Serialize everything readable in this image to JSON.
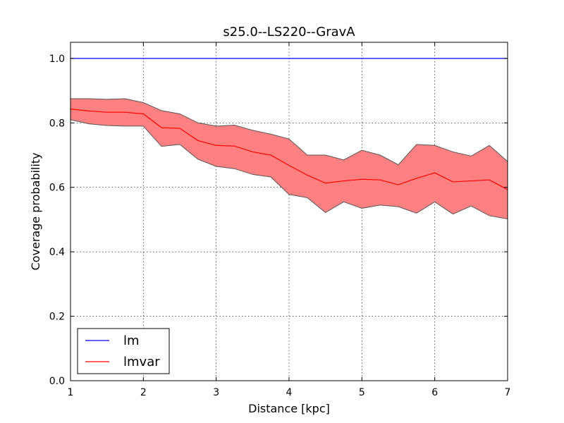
{
  "chart_data": {
    "type": "line",
    "title": "s25.0--LS220--GravA",
    "xlabel": "Distance [kpc]",
    "ylabel": "Coverage probability",
    "xlim": [
      1,
      7
    ],
    "ylim": [
      0.0,
      1.05
    ],
    "grid": true,
    "legend_position": "lower-left",
    "x_ticks": [
      "1",
      "2",
      "3",
      "4",
      "5",
      "6",
      "7"
    ],
    "y_ticks": [
      "0.0",
      "0.2",
      "0.4",
      "0.6",
      "0.8",
      "1.0"
    ],
    "x": [
      1.0,
      1.25,
      1.5,
      1.75,
      2.0,
      2.25,
      2.5,
      2.75,
      3.0,
      3.25,
      3.5,
      3.75,
      4.0,
      4.25,
      4.5,
      4.75,
      5.0,
      5.25,
      5.5,
      5.75,
      6.0,
      6.25,
      6.5,
      6.75,
      7.0
    ],
    "series": [
      {
        "name": "lm",
        "color": "#0000ff",
        "values": [
          1.0,
          1.0,
          1.0,
          1.0,
          1.0,
          1.0,
          1.0,
          1.0,
          1.0,
          1.0,
          1.0,
          1.0,
          1.0,
          1.0,
          1.0,
          1.0,
          1.0,
          1.0,
          1.0,
          1.0,
          1.0,
          1.0,
          1.0,
          1.0,
          1.0
        ]
      },
      {
        "name": "lmvar",
        "color": "#ff0000",
        "values": [
          0.843,
          0.837,
          0.833,
          0.833,
          0.828,
          0.785,
          0.783,
          0.745,
          0.73,
          0.728,
          0.71,
          0.7,
          0.668,
          0.638,
          0.613,
          0.62,
          0.625,
          0.623,
          0.608,
          0.628,
          0.645,
          0.617,
          0.62,
          0.623,
          0.593
        ],
        "band_upper": [
          0.875,
          0.875,
          0.873,
          0.875,
          0.863,
          0.838,
          0.828,
          0.8,
          0.79,
          0.793,
          0.777,
          0.765,
          0.75,
          0.7,
          0.7,
          0.685,
          0.715,
          0.7,
          0.67,
          0.733,
          0.73,
          0.71,
          0.697,
          0.73,
          0.68
        ],
        "band_lower": [
          0.81,
          0.797,
          0.792,
          0.79,
          0.79,
          0.727,
          0.733,
          0.687,
          0.665,
          0.658,
          0.64,
          0.632,
          0.578,
          0.568,
          0.522,
          0.555,
          0.535,
          0.545,
          0.54,
          0.52,
          0.555,
          0.517,
          0.542,
          0.512,
          0.502
        ],
        "band_color": "#ff8080",
        "band_edge_color": "#555555"
      }
    ]
  }
}
